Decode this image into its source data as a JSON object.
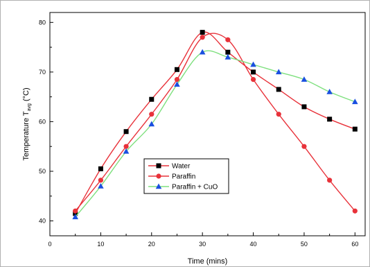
{
  "chart_data": {
    "type": "line",
    "title": "",
    "xlabel": "Time (mins)",
    "ylabel": {
      "prefix": "Temperature T",
      "subscript": "avg",
      "suffix": " (°C)"
    },
    "xlim": [
      0,
      62
    ],
    "ylim": [
      37,
      82
    ],
    "xticks": [
      0,
      10,
      20,
      30,
      40,
      50,
      60
    ],
    "yticks": [
      40,
      50,
      60,
      70,
      80
    ],
    "grid": false,
    "legend_position": "center-left",
    "x": [
      5,
      10,
      15,
      20,
      25,
      30,
      35,
      40,
      45,
      50,
      55,
      60
    ],
    "series": [
      {
        "name": "Water",
        "marker": "square",
        "marker_color": "#000000",
        "line_color": "#e8323a",
        "values": [
          41.5,
          50.5,
          58,
          64.5,
          70.5,
          78,
          74,
          70,
          66.5,
          63,
          60.5,
          58.5
        ]
      },
      {
        "name": "Paraffin",
        "marker": "circle",
        "marker_color": "#e8323a",
        "line_color": "#e8323a",
        "values": [
          42,
          48.2,
          55,
          61.5,
          68.5,
          77,
          76.5,
          68.5,
          61.5,
          55,
          48.2,
          42
        ]
      },
      {
        "name": "Paraffin + CuO",
        "marker": "triangle",
        "marker_color": "#1a4fe0",
        "line_color": "#7ee07e",
        "values": [
          40.8,
          47,
          54,
          59.5,
          67.5,
          74,
          73,
          71.5,
          70,
          68.5,
          66,
          64
        ]
      }
    ]
  }
}
